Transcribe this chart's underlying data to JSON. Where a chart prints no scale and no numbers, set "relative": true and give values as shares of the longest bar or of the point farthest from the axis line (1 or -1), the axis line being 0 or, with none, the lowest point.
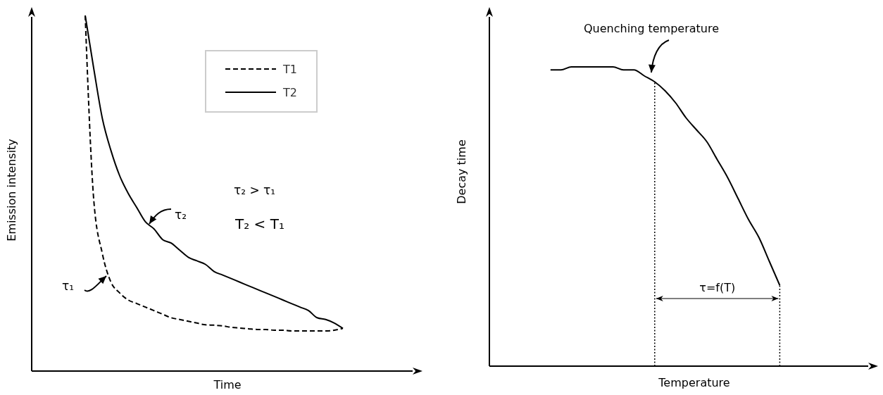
{
  "chart_data": [
    {
      "type": "line",
      "relative": true,
      "xlabel": "Time",
      "ylabel": "Emission intensity",
      "legend": "top right",
      "categories": [
        null,
        null,
        null,
        null,
        null,
        null,
        null,
        null,
        null,
        null,
        null,
        null,
        null,
        null,
        null,
        null,
        null,
        null,
        null,
        null,
        null,
        null,
        null,
        null,
        null,
        null,
        null,
        null,
        null,
        null,
        null,
        null,
        null,
        null,
        null,
        null,
        null,
        null,
        null,
        null,
        null,
        null,
        null,
        null,
        null,
        null
      ],
      "series": [
        {
          "name": "T1",
          "color": "#000000",
          "line_style": "dashed",
          "values": [
            null,
            null,
            null,
            null,
            null,
            null,
            1.0,
            0.48,
            0.33,
            0.25,
            0.22,
            0.2,
            0.19,
            0.18,
            0.17,
            0.16,
            0.15,
            0.145,
            0.14,
            0.135,
            0.13,
            0.129,
            0.127,
            0.123,
            0.121,
            0.119,
            0.117,
            0.117,
            0.115,
            0.115,
            0.113,
            0.113,
            0.113,
            0.113,
            0.113,
            0.115,
            0.12,
            null,
            null,
            null,
            null,
            null,
            null,
            null,
            null,
            null
          ]
        },
        {
          "name": "T2",
          "color": "#000000",
          "line_style": "solid",
          "values": [
            null,
            null,
            null,
            null,
            null,
            null,
            1.0,
            0.85,
            0.71,
            0.62,
            0.55,
            0.5,
            0.46,
            0.42,
            0.4,
            0.37,
            0.36,
            0.34,
            0.32,
            0.31,
            0.3,
            0.28,
            0.27,
            0.26,
            0.25,
            0.24,
            0.23,
            0.22,
            0.21,
            0.2,
            0.19,
            0.18,
            0.17,
            0.15,
            0.145,
            0.135,
            0.12,
            null,
            null,
            null,
            null,
            null,
            null,
            null,
            null,
            null
          ]
        }
      ],
      "annotations": [
        "τ₂ > τ₁",
        "T₂ < T₁",
        "τ₂",
        "τ₁"
      ]
    },
    {
      "type": "line",
      "relative": true,
      "xlabel": "Temperature",
      "ylabel": "Decay time",
      "categories": [
        null,
        null,
        null,
        null,
        null,
        null,
        null,
        null,
        null,
        null,
        null,
        null,
        null,
        null,
        null,
        null,
        null,
        null,
        null,
        null,
        null,
        null,
        null,
        null,
        null,
        null,
        null,
        null,
        null,
        null,
        null,
        null,
        null,
        null,
        null,
        null,
        null,
        null
      ],
      "series": [
        {
          "color": "#000000",
          "values": [
            null,
            null,
            null,
            null,
            null,
            null,
            0.99,
            0.99,
            1.0,
            1.0,
            1.0,
            1.0,
            1.0,
            0.99,
            0.99,
            0.97,
            0.95,
            0.92,
            0.88,
            0.83,
            0.79,
            0.75,
            0.69,
            0.63,
            0.56,
            0.49,
            0.43,
            0.35,
            0.27,
            null,
            null,
            null,
            null,
            null,
            null,
            null,
            null,
            null
          ]
        }
      ],
      "annotations": [
        "Quenching temperature",
        "τ=f(T)"
      ]
    }
  ]
}
